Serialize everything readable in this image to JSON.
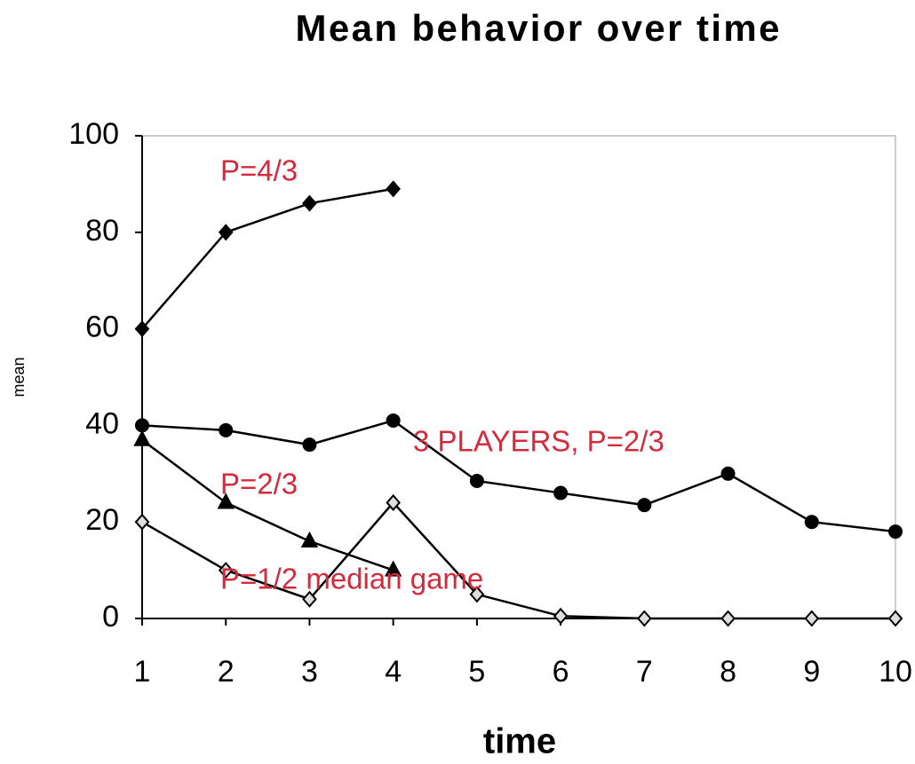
{
  "chart_data": {
    "type": "line",
    "title": "Mean behavior over time",
    "xlabel": "time",
    "ylabel": "mean",
    "x": [
      1,
      2,
      3,
      4,
      5,
      6,
      7,
      8,
      9,
      10
    ],
    "series": [
      {
        "name": "P=4/3",
        "color": "#000000",
        "marker": "diamond",
        "values": [
          60,
          80,
          86,
          89,
          null,
          null,
          null,
          null,
          null,
          null
        ]
      },
      {
        "name": "3 PLAYERS, P=2/3",
        "color": "#000000",
        "marker": "circle",
        "values": [
          40,
          39,
          36,
          41,
          28.5,
          26,
          23.5,
          30,
          20,
          18
        ]
      },
      {
        "name": "P=2/3",
        "color": "#000000",
        "marker": "triangle",
        "values": [
          37,
          24,
          16,
          10,
          null,
          null,
          null,
          null,
          null,
          null
        ]
      },
      {
        "name": "P=1/2 median game",
        "color": "#000000",
        "marker": "open-diamond",
        "values": [
          20,
          10,
          4,
          24,
          5,
          0.5,
          0,
          0,
          0,
          0
        ]
      }
    ],
    "annotation_color": "#d42a3c",
    "xlim": [
      1,
      10
    ],
    "xticks": [
      1,
      2,
      3,
      4,
      5,
      6,
      7,
      8,
      9,
      10
    ],
    "ylim": [
      0,
      100
    ],
    "yticks": [
      0,
      20,
      40,
      60,
      80,
      100
    ],
    "grid": false,
    "legend": false
  }
}
